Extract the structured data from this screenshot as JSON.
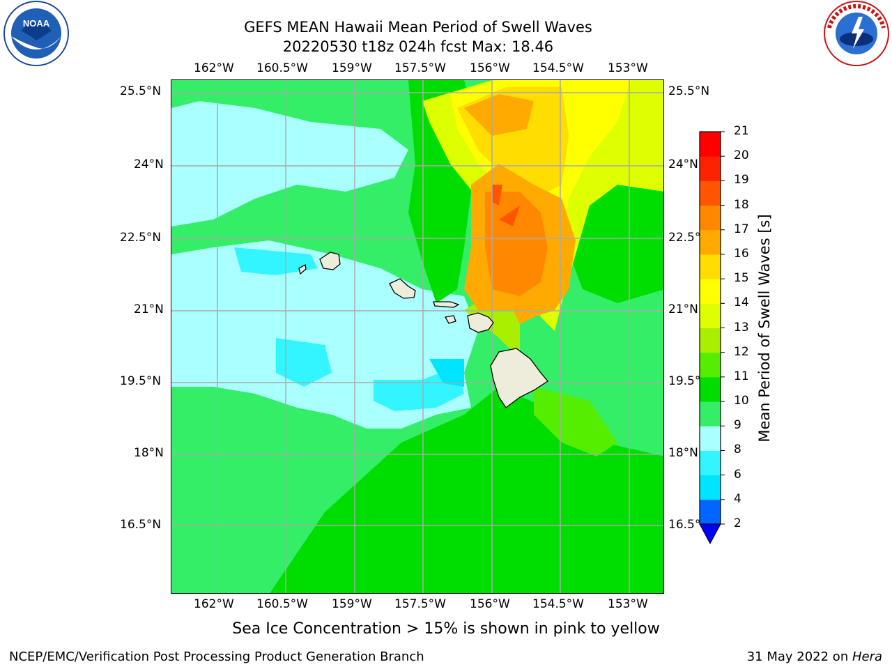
{
  "title": {
    "line1": "GEFS MEAN Hawaii Mean Period of Swell Waves",
    "line2": "20220530 t18z 024h fcst   Max: 18.46"
  },
  "lon_ticks": [
    "162°W",
    "160.5°W",
    "159°W",
    "157.5°W",
    "156°W",
    "154.5°W",
    "153°W"
  ],
  "lat_ticks": [
    "25.5°N",
    "24°N",
    "22.5°N",
    "21°N",
    "19.5°N",
    "18°N",
    "16.5°N"
  ],
  "colorbar": {
    "title": "Mean Period of Swell Waves [s]",
    "labels": [
      "2",
      "4",
      "6",
      "8",
      "9",
      "10",
      "11",
      "12",
      "13",
      "14",
      "15",
      "16",
      "17",
      "18",
      "19",
      "20",
      "21"
    ],
    "colors": [
      "#0066ff",
      "#00e5ff",
      "#33f5ff",
      "#aaffff",
      "#33ee66",
      "#00dd00",
      "#55ee00",
      "#aaee00",
      "#ddff00",
      "#ffff00",
      "#ffdd00",
      "#ffaa00",
      "#ff8800",
      "#ff5500",
      "#ff2200",
      "#ff0000"
    ],
    "under_color": "#0000ff"
  },
  "note": "Sea Ice Concentration > 15% is shown in pink to yellow",
  "footer": {
    "left": "NCEP/EMC/Verification Post Processing Product Generation Branch",
    "right_date": "31 May 2022 on ",
    "right_machine": "Hera"
  },
  "logos": {
    "left": "NOAA",
    "right": "NATIONAL WEATHER SERVICE"
  },
  "colors": {
    "land": "#eeecda",
    "grid": "#aaaaaa"
  }
}
